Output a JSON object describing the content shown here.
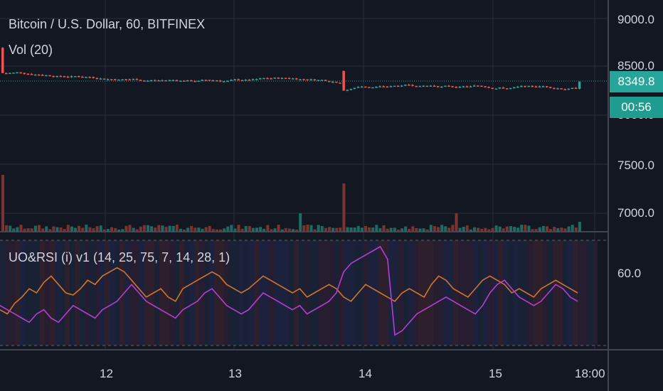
{
  "header": {
    "title": "Bitcoin / U.S. Dollar, 60, BITFINEX",
    "volume_label": "Vol (20)",
    "indicator_label": "UO&RSI (i) v1 (14, 25, 75, 7, 14, 28, 1)"
  },
  "price_axis": {
    "ticks": [
      "9000.0",
      "8500.0",
      "7500.0",
      "7000.0"
    ],
    "hidden_tick": "8000.0",
    "current_price": "8349.8",
    "countdown": "00:56"
  },
  "indicator_axis": {
    "ticks": [
      "60.0"
    ]
  },
  "time_axis": {
    "ticks": [
      "12",
      "13",
      "14",
      "15",
      "18:00"
    ]
  },
  "colors": {
    "background": "#131722",
    "grid": "#2a2e39",
    "up": "#26a69a",
    "down": "#ef5350",
    "volume_up": "#1f6b64",
    "volume_down": "#7a3431",
    "uo_line": "#d0752c",
    "rsi_line": "#b53fd0"
  },
  "chart_data": {
    "type": "candlestick",
    "price_range": [
      6800,
      9200
    ],
    "candles_summary": {
      "start_price": 8420,
      "drop_near_day_14_to": 8240,
      "end_price": 8349.8
    },
    "volume_spikes": [
      {
        "position": "start",
        "relative": 0.5
      },
      {
        "position": "day 13.8",
        "relative": 0.55
      }
    ],
    "indicator": {
      "type": "line",
      "series": [
        {
          "name": "UO",
          "values": [
            42,
            40,
            45,
            48,
            52,
            50,
            55,
            58,
            54,
            50,
            49,
            52,
            56,
            54,
            58,
            60,
            62,
            60,
            56,
            52,
            48,
            50,
            52,
            48,
            46,
            52,
            54,
            56,
            58,
            60,
            58,
            54,
            52,
            50,
            52,
            55,
            58,
            56,
            54,
            52,
            50,
            52,
            48,
            50,
            52,
            54,
            52,
            48,
            46,
            50,
            54,
            52,
            50,
            48,
            46,
            50,
            52,
            50,
            48,
            54,
            58,
            56,
            52,
            50,
            48,
            52,
            56,
            58,
            56,
            54,
            50,
            52,
            50,
            48,
            52,
            54,
            56,
            54,
            52,
            50
          ]
        },
        {
          "name": "RSI",
          "values": [
            44,
            42,
            40,
            38,
            36,
            40,
            42,
            38,
            36,
            40,
            44,
            42,
            40,
            38,
            42,
            44,
            46,
            50,
            54,
            50,
            46,
            44,
            42,
            40,
            38,
            42,
            44,
            46,
            50,
            52,
            48,
            44,
            42,
            40,
            42,
            46,
            50,
            48,
            46,
            44,
            42,
            44,
            40,
            42,
            44,
            46,
            50,
            60,
            64,
            66,
            68,
            70,
            72,
            66,
            30,
            32,
            36,
            40,
            42,
            44,
            46,
            48,
            46,
            44,
            42,
            40,
            44,
            50,
            54,
            56,
            52,
            48,
            46,
            44,
            46,
            50,
            54,
            52,
            48,
            46
          ]
        }
      ],
      "level": 60
    }
  }
}
